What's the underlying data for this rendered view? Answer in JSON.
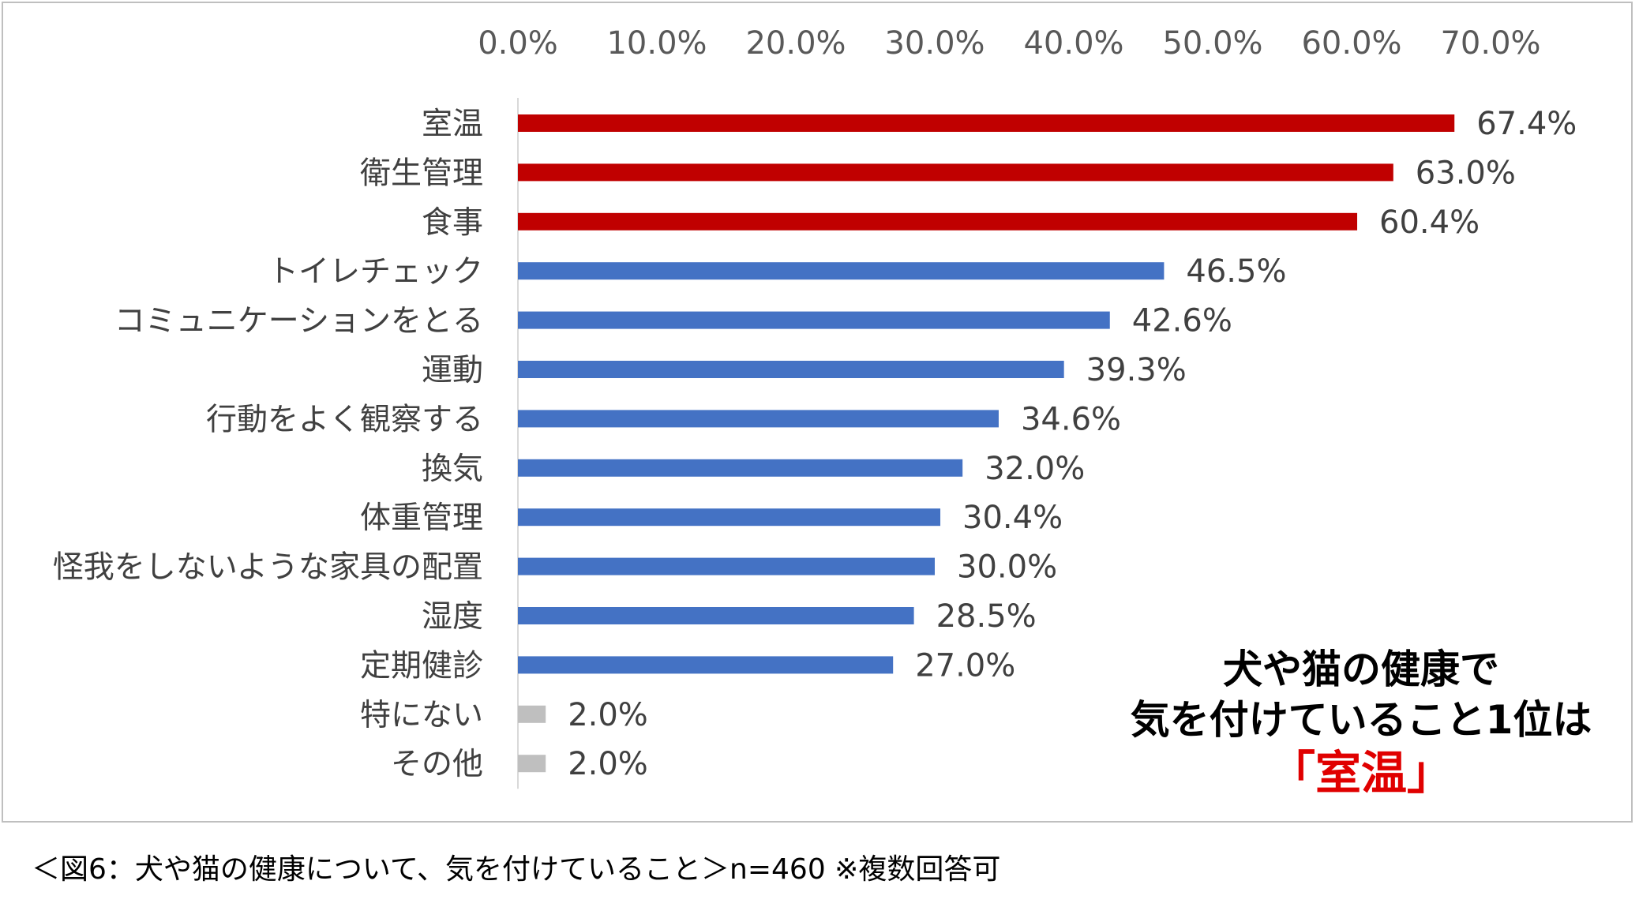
{
  "chart_data": {
    "type": "bar",
    "orientation": "horizontal",
    "categories": [
      "室温",
      "衛生管理",
      "食事",
      "トイレチェック",
      "コミュニケーションをとる",
      "運動",
      "行動をよく観察する",
      "換気",
      "体重管理",
      "怪我をしないような家具の配置",
      "湿度",
      "定期健診",
      "特にない",
      "その他"
    ],
    "values": [
      67.4,
      63.0,
      60.4,
      46.5,
      42.6,
      39.3,
      34.6,
      32.0,
      30.4,
      30.0,
      28.5,
      27.0,
      2.0,
      2.0
    ],
    "value_labels": [
      "67.4%",
      "63.0%",
      "60.4%",
      "46.5%",
      "42.6%",
      "39.3%",
      "34.6%",
      "32.0%",
      "30.4%",
      "30.0%",
      "28.5%",
      "27.0%",
      "2.0%",
      "2.0%"
    ],
    "bar_colors": [
      "#c00000",
      "#c00000",
      "#c00000",
      "#4472c4",
      "#4472c4",
      "#4472c4",
      "#4472c4",
      "#4472c4",
      "#4472c4",
      "#4472c4",
      "#4472c4",
      "#4472c4",
      "#bfbfbf",
      "#bfbfbf"
    ],
    "xlim": [
      0,
      70
    ],
    "x_ticks": [
      "0.0%",
      "10.0%",
      "20.0%",
      "30.0%",
      "40.0%",
      "50.0%",
      "60.0%",
      "70.0%"
    ],
    "x_axis_position": "top",
    "grid": false,
    "title": "",
    "xlabel": "",
    "ylabel": ""
  },
  "callout": {
    "line1": "犬や猫の健康で",
    "line2": "気を付けていること1位は",
    "line3": "「室温」",
    "highlight_color": "#e00000"
  },
  "caption": "＜図6：犬や猫の健康について、気を付けていること＞n=460 ※複数回答可"
}
